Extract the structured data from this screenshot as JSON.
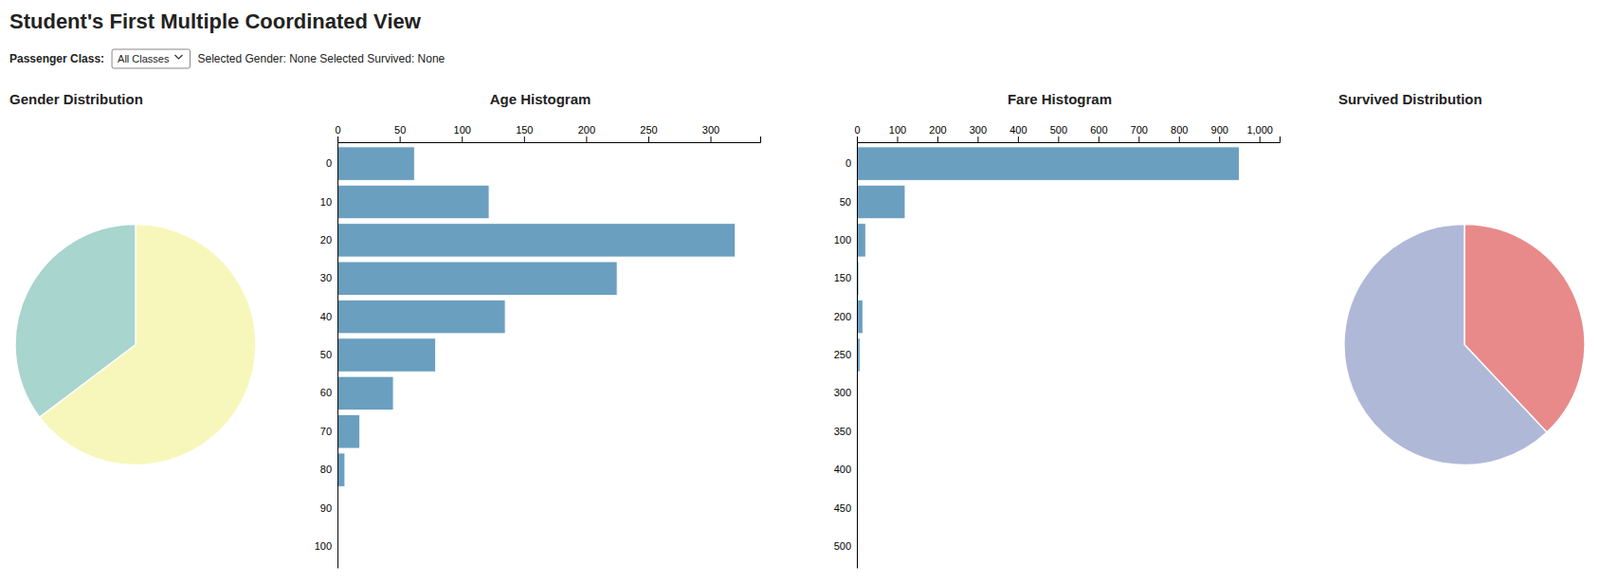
{
  "title": "Student's First Multiple Coordinated View",
  "subtitle": [
    "Passenger Class:",
    "All Classes",
    "Selected Gender: None Selected Survived: None"
  ],
  "chart_data": [
    {
      "type": "pie",
      "title": "Gender Distribution",
      "values": [
        0.647,
        0.353
      ],
      "colors": [
        "#f7f7bc",
        "#a8d5cd"
      ]
    },
    {
      "type": "bar",
      "orientation": "horizontal",
      "title": "Age Histogram",
      "categories": [
        "0",
        "10",
        "20",
        "30",
        "40",
        "50",
        "60",
        "70",
        "80",
        "90",
        "100"
      ],
      "values": [
        62,
        122,
        320,
        225,
        135,
        79,
        45,
        18,
        6,
        0,
        0
      ],
      "color": "#6a9fc0",
      "xlim": [
        0,
        340
      ],
      "xticks": [
        0,
        50,
        100,
        150,
        200,
        250,
        300
      ],
      "grid": false
    },
    {
      "type": "bar",
      "orientation": "horizontal",
      "title": "Fare Histogram",
      "categories": [
        "0",
        "50",
        "100",
        "150",
        "200",
        "250",
        "300",
        "350",
        "400",
        "450",
        "500"
      ],
      "values": [
        950,
        120,
        22,
        5,
        15,
        8,
        3,
        2,
        3,
        1,
        2
      ],
      "color": "#6a9fc0",
      "xlim": [
        0,
        1050
      ],
      "xticks": [
        0,
        100,
        200,
        300,
        400,
        500,
        600,
        700,
        800,
        900,
        {
          "value": 1000,
          "label": "1,000"
        }
      ],
      "grid": false
    },
    {
      "type": "pie",
      "title": "Survived Distribution",
      "values": [
        0.38,
        0.62
      ],
      "colors": [
        "#e88a8a",
        "#b0b8d8"
      ]
    }
  ]
}
